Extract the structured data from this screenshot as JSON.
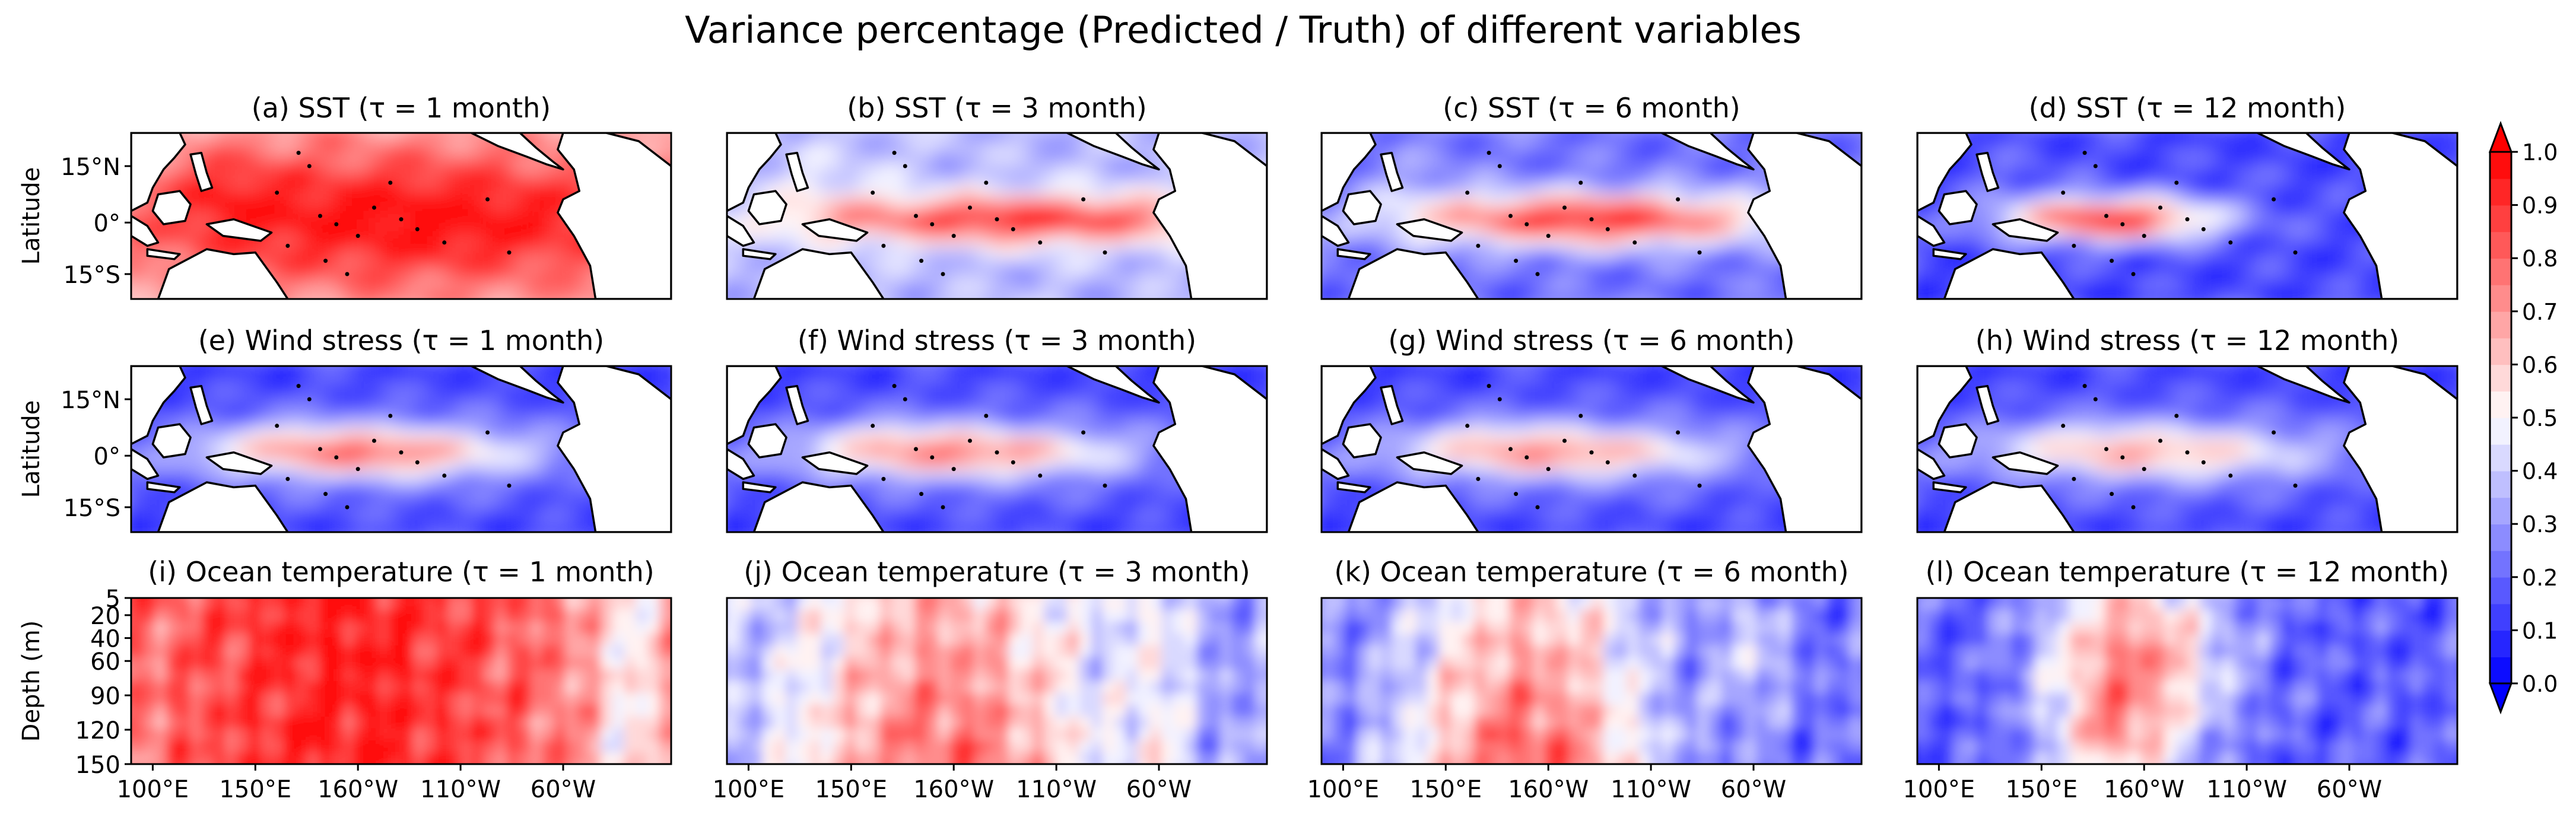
{
  "chart_data": {
    "type": "heatmap",
    "title": "Variance percentage (Predicted / Truth) of different variables",
    "rows": [
      {
        "kind": "map",
        "ylabel": "Latitude",
        "yticks": [
          "15°N",
          "0°",
          "15°S"
        ],
        "panels": [
          {
            "title": "(a) SST (τ = 1 month)",
            "field": "sst",
            "lead": 1
          },
          {
            "title": "(b) SST (τ = 3 month)",
            "field": "sst",
            "lead": 3
          },
          {
            "title": "(c) SST (τ = 6 month)",
            "field": "sst",
            "lead": 6
          },
          {
            "title": "(d) SST (τ = 12 month)",
            "field": "sst",
            "lead": 12
          }
        ]
      },
      {
        "kind": "map",
        "ylabel": "Latitude",
        "yticks": [
          "15°N",
          "0°",
          "15°S"
        ],
        "panels": [
          {
            "title": "(e) Wind stress (τ = 1 month)",
            "field": "wind",
            "lead": 1
          },
          {
            "title": "(f) Wind stress (τ = 3 month)",
            "field": "wind",
            "lead": 3
          },
          {
            "title": "(g) Wind stress (τ = 6 month)",
            "field": "wind",
            "lead": 6
          },
          {
            "title": "(h) Wind stress (τ = 12 month)",
            "field": "wind",
            "lead": 12
          }
        ]
      },
      {
        "kind": "depth",
        "ylabel": "Depth (m)",
        "yticks": [
          "5",
          "20",
          "40",
          "60",
          "90",
          "120",
          "150"
        ],
        "panels": [
          {
            "title": "(i) Ocean temperature (τ = 1 month)",
            "field": "ocean",
            "lead": 1
          },
          {
            "title": "(j) Ocean temperature (τ = 3 month)",
            "field": "ocean",
            "lead": 3
          },
          {
            "title": "(k) Ocean temperature (τ = 6 month)",
            "field": "ocean",
            "lead": 6
          },
          {
            "title": "(l) Ocean temperature (τ = 12 month)",
            "field": "ocean",
            "lead": 12
          }
        ]
      }
    ],
    "xticks": [
      "100°E",
      "150°E",
      "160°W",
      "110°W",
      "60°W"
    ],
    "colorbar": {
      "ticks": [
        "0.0",
        "0.1",
        "0.2",
        "0.3",
        "0.4",
        "0.5",
        "0.6",
        "0.7",
        "0.8",
        "0.9",
        "1.0"
      ],
      "range": [
        0,
        1
      ],
      "levels": 20,
      "low_color": "#0000ff",
      "mid_color": "#ffffff",
      "high_color": "#ff0000",
      "extend": "both"
    }
  }
}
